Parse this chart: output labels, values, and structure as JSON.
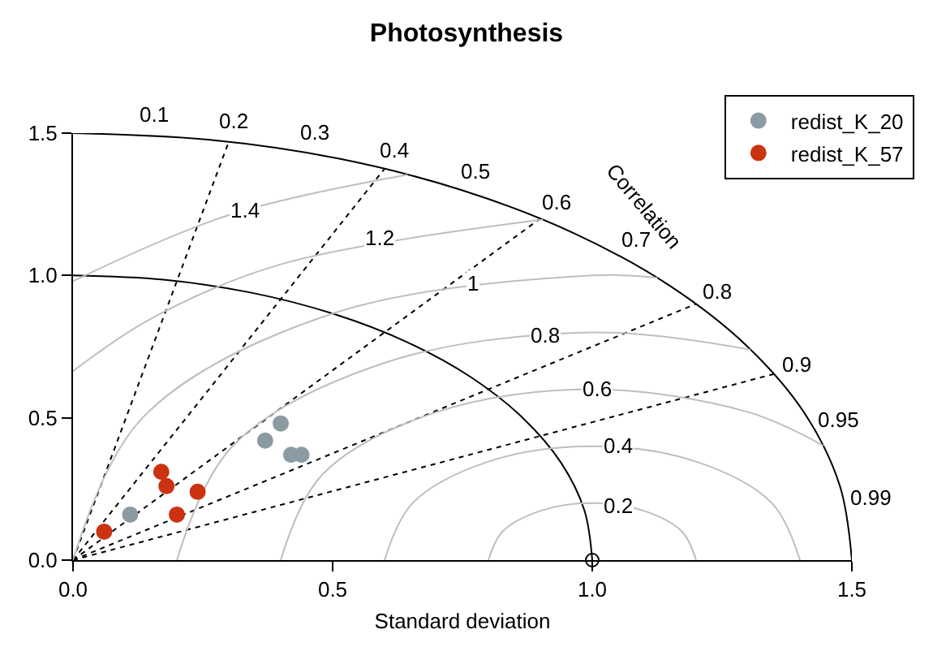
{
  "chart_data": {
    "type": "scatter",
    "title": "Photosynthesis",
    "xlabel": "Standard deviation",
    "xlim": [
      0,
      1.5
    ],
    "ylim": [
      0,
      1.5
    ],
    "xticks": [
      {
        "value": 0,
        "label": "0.0"
      },
      {
        "value": 0.5,
        "label": "0.5"
      },
      {
        "value": 1,
        "label": "1.0"
      },
      {
        "value": 1.5,
        "label": "1.5"
      }
    ],
    "yticks": [
      {
        "value": 0,
        "label": "0.0"
      },
      {
        "value": 0.5,
        "label": "0.5"
      },
      {
        "value": 1,
        "label": "1.0"
      },
      {
        "value": 1.5,
        "label": "1.5"
      }
    ],
    "grid": false,
    "legend": "top right",
    "series": [
      {
        "type": "line",
        "color": "#000000",
        "line_style": "solid",
        "x": [
          1,
          0.985,
          0.94,
          0.866,
          0.766,
          0.643,
          0.5,
          0.342,
          0.174,
          0
        ],
        "values": [
          0,
          0.174,
          0.342,
          0.5,
          0.643,
          0.766,
          0.866,
          0.94,
          0.985,
          1
        ]
      },
      {
        "type": "line",
        "color": "#000000",
        "line_style": "solid",
        "x": [
          1.5,
          1.477,
          1.41,
          1.299,
          1.149,
          0.964,
          0.75,
          0.513,
          0.26,
          0
        ],
        "values": [
          0,
          0.26,
          0.513,
          0.75,
          0.964,
          1.149,
          1.299,
          1.41,
          1.477,
          1.5
        ]
      },
      {
        "type": "line",
        "color": "#000000",
        "line_style": "dotted",
        "x": [
          0,
          0.3
        ],
        "values": [
          0,
          1.47
        ]
      },
      {
        "type": "line",
        "color": "#000000",
        "line_style": "dotted",
        "x": [
          0,
          0.6
        ],
        "values": [
          0,
          1.375
        ]
      },
      {
        "type": "line",
        "color": "#000000",
        "line_style": "dotted",
        "x": [
          0,
          0.9
        ],
        "values": [
          0,
          1.2
        ]
      },
      {
        "type": "line",
        "color": "#000000",
        "line_style": "dotted",
        "x": [
          0,
          1.2
        ],
        "values": [
          0,
          0.9
        ]
      },
      {
        "type": "line",
        "color": "#000000",
        "line_style": "dotted",
        "x": [
          0,
          1.35
        ],
        "values": [
          0,
          0.654
        ]
      },
      {
        "type": "line",
        "color": "#bebebe",
        "line_style": "solid",
        "x": [
          1.2,
          1.173,
          1.1,
          1,
          0.9,
          0.827,
          0.8
        ],
        "values": [
          0,
          0.1,
          0.173,
          0.2,
          0.173,
          0.1,
          0
        ]
      },
      {
        "type": "line",
        "color": "#bebebe",
        "line_style": "solid",
        "x": [
          1.4,
          1.346,
          1.2,
          1,
          0.8,
          0.654,
          0.6
        ],
        "values": [
          0,
          0.2,
          0.346,
          0.4,
          0.346,
          0.2,
          0
        ]
      },
      {
        "type": "line",
        "color": "#bebebe",
        "line_style": "solid",
        "x": [
          1.445,
          1.3,
          1,
          0.7,
          0.48,
          0.4
        ],
        "values": [
          0.402,
          0.52,
          0.6,
          0.52,
          0.3,
          0
        ]
      },
      {
        "type": "line",
        "color": "#bebebe",
        "line_style": "solid",
        "x": [
          1.305,
          1,
          0.6,
          0.307,
          0.2
        ],
        "values": [
          0.739,
          0.8,
          0.693,
          0.4,
          0
        ]
      },
      {
        "type": "line",
        "color": "#bebebe",
        "line_style": "solid",
        "x": [
          1.125,
          1,
          0.5,
          0.134,
          0
        ],
        "values": [
          0.992,
          1,
          0.866,
          0.5,
          0
        ]
      },
      {
        "type": "line",
        "color": "#bebebe",
        "line_style": "solid",
        "x": [
          0.905,
          0.4,
          0.151,
          0
        ],
        "values": [
          1.196,
          1.039,
          0.849,
          0.664
        ]
      },
      {
        "type": "line",
        "color": "#bebebe",
        "line_style": "solid",
        "x": [
          0.644,
          0.3,
          0
        ],
        "values": [
          1.354,
          1.212,
          0.98
        ]
      },
      {
        "type": "scatter",
        "color": "#000000",
        "marker": "circle",
        "x": [
          1
        ],
        "values": [
          0
        ]
      },
      {
        "type": "scatter",
        "name": "redist_K_20",
        "color": "#8c9ba3",
        "marker": "circle",
        "x": [
          0.11,
          0.37,
          0.4,
          0.42,
          0.44
        ],
        "values": [
          0.16,
          0.42,
          0.48,
          0.37,
          0.37
        ]
      },
      {
        "type": "scatter",
        "name": "redist_K_57",
        "color": "#cc3311",
        "marker": "circle",
        "x": [
          0.06,
          0.17,
          0.18,
          0.2,
          0.24
        ],
        "values": [
          0.1,
          0.31,
          0.26,
          0.16,
          0.24
        ]
      }
    ],
    "annotations": [
      {
        "text": "0.2",
        "x": 1.05,
        "y": 0.19
      },
      {
        "text": "0.4",
        "x": 1.05,
        "y": 0.4
      },
      {
        "text": "0.6",
        "x": 1.01,
        "y": 0.6
      },
      {
        "text": "0.8",
        "x": 0.91,
        "y": 0.79
      },
      {
        "text": "1",
        "x": 0.77,
        "y": 0.97
      },
      {
        "text": "1.2",
        "x": 0.59,
        "y": 1.13
      },
      {
        "text": "1.4",
        "x": 0.33,
        "y": 1.23
      },
      {
        "text": "0.1",
        "x": 0.15,
        "y": 1.4925
      },
      {
        "text": "0.2",
        "x": 0.3,
        "y": 1.4697
      },
      {
        "text": "0.3",
        "x": 0.45,
        "y": 1.4309
      },
      {
        "text": "0.4",
        "x": 0.6,
        "y": 1.3748
      },
      {
        "text": "0.5",
        "x": 0.75,
        "y": 1.299
      },
      {
        "text": "0.6",
        "x": 0.9,
        "y": 1.2
      },
      {
        "text": "0.7",
        "x": 1.05,
        "y": 1.0712
      },
      {
        "text": "0.8",
        "x": 1.2,
        "y": 0.9
      },
      {
        "text": "0.9",
        "x": 1.35,
        "y": 0.6538
      },
      {
        "text": "0.95",
        "x": 1.425,
        "y": 0.4684
      },
      {
        "text": "0.99",
        "x": 1.485,
        "y": 0.2116
      },
      "Correlation"
    ]
  }
}
